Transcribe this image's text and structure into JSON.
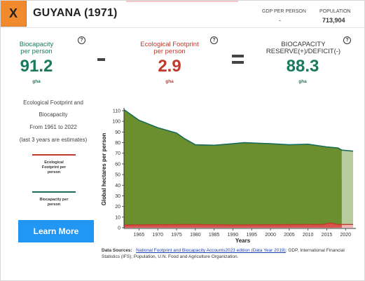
{
  "header": {
    "close_label": "X",
    "country_title": "GUYANA (1971)",
    "gdp_label": "GDP PER PERSON",
    "gdp_value": "-",
    "population_label": "POPULATION",
    "population_value": "713,904"
  },
  "metrics": {
    "biocapacity": {
      "label_line1": "Biocapacity",
      "label_line2": "per person",
      "value": "91.2",
      "unit": "gha",
      "color": "#1a7a5e"
    },
    "footprint": {
      "label_line1": "Ecological Footprint",
      "label_line2": "per person",
      "value": "2.9",
      "unit": "gha",
      "color": "#c0392b"
    },
    "reserve": {
      "label_line1": "BIOCAPACITY",
      "label_line2": "RESERVE(+)/DEFICIT(-)",
      "value": "88.3",
      "unit": "gha",
      "color": "#1a7a5e"
    },
    "help_symbol": "?"
  },
  "sidebar": {
    "desc_line1": "Ecological Footprint and",
    "desc_line2": "Biocapacity",
    "desc_line3": "From 1961 to 2022",
    "desc_line4": "(last 3 years are estimates)",
    "legend_footprint": [
      "Ecological",
      "Footprint per",
      "person"
    ],
    "legend_biocapacity": [
      "Biocapacity per",
      "person"
    ],
    "legend_footprint_color": "#c0392b",
    "legend_biocapacity_color": "#1a6b5a",
    "learn_more_label": "Learn More"
  },
  "chart_data": {
    "type": "area",
    "xlabel": "Years",
    "ylabel": "Global hectares per person",
    "ylim": [
      0,
      110
    ],
    "xlim": [
      1961,
      2022
    ],
    "yticks": [
      0,
      10,
      20,
      30,
      40,
      50,
      60,
      70,
      80,
      90,
      100,
      110
    ],
    "xticks": [
      1965,
      1970,
      1975,
      1980,
      1985,
      1990,
      1995,
      2000,
      2005,
      2010,
      2015,
      2020
    ],
    "estimate_start_year": 2019,
    "series": [
      {
        "name": "Biocapacity per person",
        "color": "#1a6b5a",
        "fill": "#6b8e2e",
        "estimate_fill": "#b9cc9e",
        "points": [
          [
            1961,
            111
          ],
          [
            1965,
            101
          ],
          [
            1970,
            94
          ],
          [
            1975,
            89
          ],
          [
            1977,
            84
          ],
          [
            1980,
            78
          ],
          [
            1985,
            77.5
          ],
          [
            1990,
            79
          ],
          [
            1993,
            80
          ],
          [
            2000,
            79
          ],
          [
            2005,
            78
          ],
          [
            2010,
            78.5
          ],
          [
            2015,
            76
          ],
          [
            2018,
            75
          ],
          [
            2019,
            73
          ],
          [
            2022,
            72
          ]
        ]
      },
      {
        "name": "Ecological Footprint per person",
        "color": "#c0392b",
        "fill": "#d9534f",
        "estimate_fill": "#f2b8b6",
        "points": [
          [
            1961,
            2.5
          ],
          [
            1970,
            2.8
          ],
          [
            1980,
            3.0
          ],
          [
            1990,
            2.6
          ],
          [
            2000,
            2.8
          ],
          [
            2010,
            3.0
          ],
          [
            2014,
            3.0
          ],
          [
            2016,
            4.5
          ],
          [
            2018,
            3.0
          ],
          [
            2022,
            3.1
          ]
        ]
      }
    ]
  },
  "sources": {
    "title": "Data Sources:",
    "link_text": "National Footprint and Biocapacity Accounts2023 edition (Data Year 2019)",
    "rest_text": "; GDP, International Financial Statistics (IFS); Population, U.N. Food and Agriculture Organization."
  }
}
